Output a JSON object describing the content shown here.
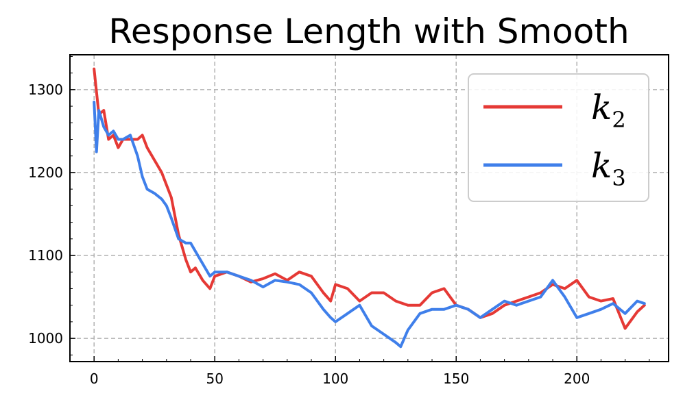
{
  "chart_data": {
    "type": "line",
    "title": "Response Length with Smooth",
    "xlabel": "",
    "ylabel": "",
    "xlim": [
      -10,
      238
    ],
    "ylim": [
      972,
      1342
    ],
    "xticks": [
      0,
      50,
      100,
      150,
      200
    ],
    "yticks": [
      1000,
      1100,
      1200,
      1300
    ],
    "xtick_labels": [
      "0",
      "50",
      "100",
      "150",
      "200"
    ],
    "ytick_labels": [
      "1000",
      "1100",
      "1200",
      "1300"
    ],
    "grid": true,
    "legend_position": "top-right",
    "series": [
      {
        "name": "k",
        "subscript": "2",
        "color": "#e53935",
        "x": [
          0,
          2,
          4,
          6,
          8,
          10,
          12,
          15,
          18,
          20,
          22,
          25,
          28,
          30,
          32,
          35,
          38,
          40,
          42,
          45,
          48,
          50,
          55,
          60,
          65,
          70,
          75,
          80,
          85,
          90,
          95,
          98,
          100,
          105,
          110,
          115,
          120,
          125,
          130,
          135,
          140,
          145,
          150,
          155,
          160,
          165,
          170,
          175,
          180,
          185,
          190,
          195,
          200,
          205,
          210,
          215,
          220,
          225,
          228
        ],
        "y": [
          1325,
          1270,
          1275,
          1240,
          1245,
          1230,
          1240,
          1240,
          1240,
          1245,
          1230,
          1215,
          1200,
          1185,
          1170,
          1125,
          1095,
          1080,
          1085,
          1070,
          1060,
          1075,
          1080,
          1075,
          1068,
          1072,
          1078,
          1070,
          1080,
          1075,
          1055,
          1045,
          1065,
          1060,
          1045,
          1055,
          1055,
          1045,
          1040,
          1040,
          1055,
          1060,
          1040,
          1035,
          1025,
          1030,
          1040,
          1045,
          1050,
          1055,
          1065,
          1060,
          1070,
          1050,
          1045,
          1048,
          1012,
          1032,
          1040
        ]
      },
      {
        "name": "k",
        "subscript": "3",
        "color": "#3f7fea",
        "x": [
          0,
          1,
          2,
          4,
          6,
          8,
          10,
          12,
          15,
          18,
          20,
          22,
          25,
          28,
          30,
          32,
          35,
          38,
          40,
          42,
          45,
          48,
          50,
          55,
          60,
          65,
          70,
          75,
          80,
          85,
          90,
          95,
          98,
          100,
          105,
          110,
          115,
          120,
          125,
          127,
          130,
          135,
          140,
          145,
          150,
          155,
          160,
          165,
          170,
          175,
          180,
          185,
          190,
          195,
          200,
          205,
          210,
          215,
          220,
          225,
          228
        ],
        "y": [
          1285,
          1225,
          1275,
          1255,
          1245,
          1250,
          1240,
          1240,
          1245,
          1220,
          1195,
          1180,
          1175,
          1168,
          1160,
          1145,
          1120,
          1115,
          1115,
          1105,
          1090,
          1075,
          1080,
          1080,
          1075,
          1070,
          1062,
          1070,
          1068,
          1065,
          1055,
          1035,
          1025,
          1020,
          1030,
          1040,
          1015,
          1005,
          995,
          990,
          1010,
          1030,
          1035,
          1035,
          1040,
          1035,
          1025,
          1035,
          1045,
          1040,
          1045,
          1050,
          1070,
          1050,
          1025,
          1030,
          1035,
          1042,
          1030,
          1045,
          1042
        ]
      }
    ]
  }
}
